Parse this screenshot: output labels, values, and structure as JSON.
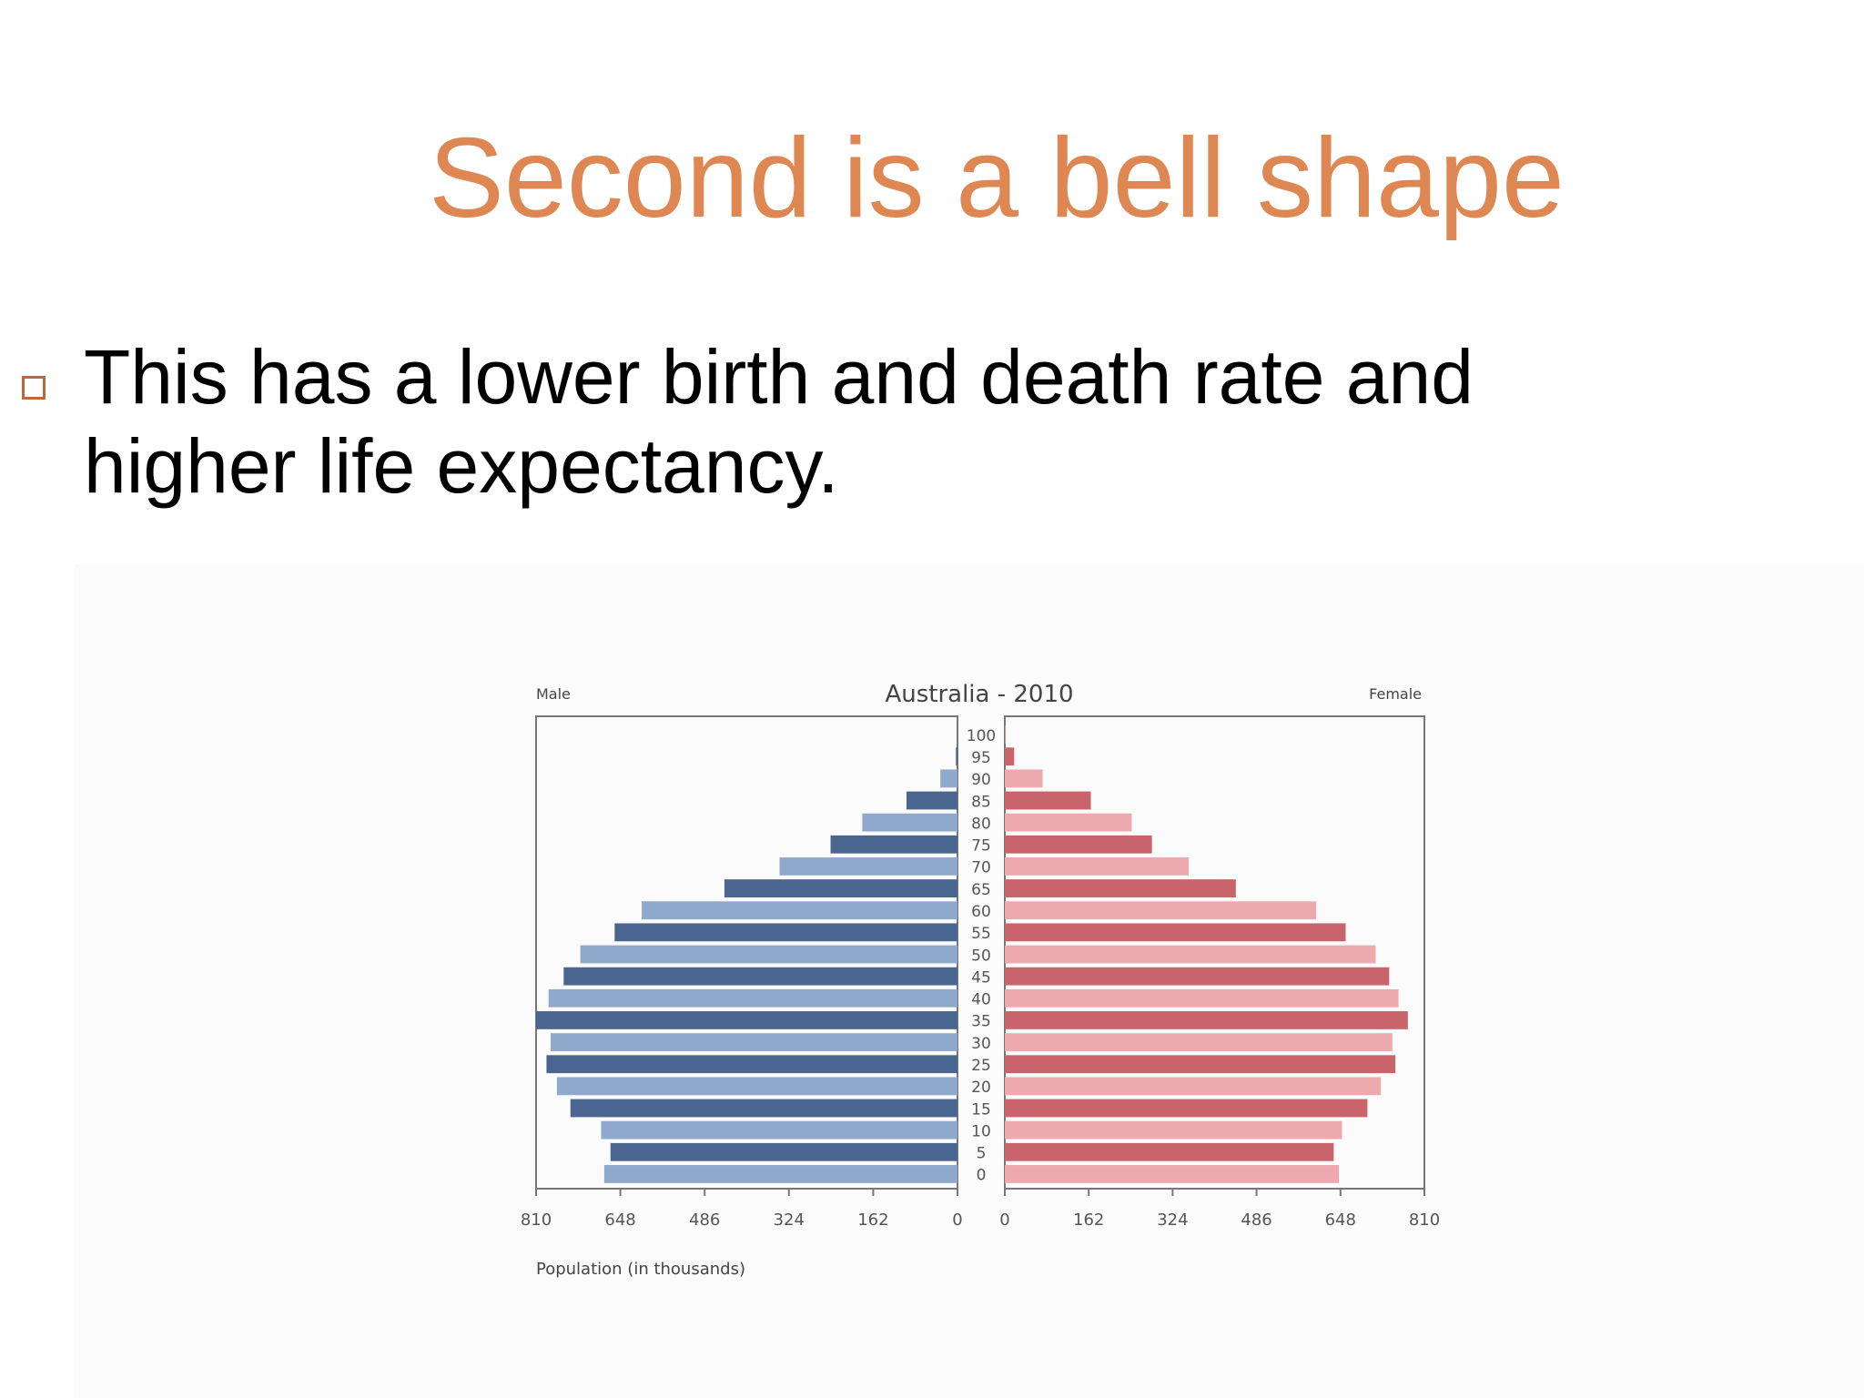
{
  "slide": {
    "title": "Second is a bell shape",
    "bullet_text": "This has a lower birth and death rate and higher life expectancy.",
    "title_color": "#de8752"
  },
  "chart_data": {
    "type": "bar",
    "orientation": "horizontal-pyramid",
    "title": "Australia - 2010",
    "left_label": "Male",
    "right_label": "Female",
    "xlabel": "Population (in thousands)",
    "x_ticks_left": [
      "810",
      "648",
      "486",
      "324",
      "162",
      "0"
    ],
    "x_ticks_right": [
      "0",
      "162",
      "324",
      "486",
      "648",
      "810"
    ],
    "xlim": [
      0,
      810
    ],
    "categories": [
      "100",
      "95",
      "90",
      "85",
      "80",
      "75",
      "70",
      "65",
      "60",
      "55",
      "50",
      "45",
      "40",
      "35",
      "30",
      "25",
      "20",
      "15",
      "10",
      "5",
      "0"
    ],
    "series": [
      {
        "name": "Male",
        "color_dark": "#4a6590",
        "color_light": "#8fa9cc",
        "values": [
          0,
          3,
          33,
          98,
          183,
          244,
          342,
          448,
          607,
          659,
          725,
          757,
          786,
          810,
          782,
          790,
          770,
          744,
          685,
          667,
          679
        ]
      },
      {
        "name": "Female",
        "color_dark": "#c9646b",
        "color_light": "#eda9ae",
        "values": [
          1,
          18,
          73,
          166,
          245,
          284,
          355,
          446,
          601,
          658,
          716,
          742,
          760,
          778,
          748,
          754,
          726,
          700,
          651,
          635,
          645
        ]
      }
    ]
  }
}
